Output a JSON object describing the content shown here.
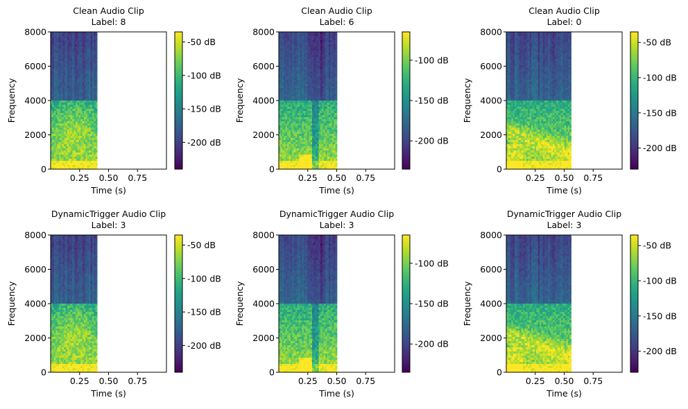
{
  "chart_data": [
    {
      "type": "heatmap",
      "title_line1": "Clean Audio Clip",
      "title_line2": "Label: 8",
      "xlabel": "Time (s)",
      "ylabel": "Frequency",
      "xlim": [
        0.0,
        1.0
      ],
      "ylim": [
        0,
        8000
      ],
      "xticks": [
        0.25,
        0.5,
        0.75
      ],
      "xtick_labels": [
        "0.25",
        "0.50",
        "0.75"
      ],
      "yticks": [
        0,
        2000,
        4000,
        6000,
        8000
      ],
      "ytick_labels": [
        "0",
        "2000",
        "4000",
        "6000",
        "8000"
      ],
      "signal_end_s": 0.4,
      "colormap": "viridis",
      "colorbar_range_db": [
        -240,
        -35
      ],
      "colorbar_ticks": [
        -50,
        -100,
        -150,
        -200
      ],
      "colorbar_tick_labels": [
        "-50 dB",
        "-100 dB",
        "-150 dB",
        "-200 dB"
      ],
      "variant": 0
    },
    {
      "type": "heatmap",
      "title_line1": "Clean Audio Clip",
      "title_line2": "Label: 6",
      "xlabel": "Time (s)",
      "ylabel": "Frequency",
      "xlim": [
        0.0,
        1.0
      ],
      "ylim": [
        0,
        8000
      ],
      "xticks": [
        0.25,
        0.5,
        0.75
      ],
      "xtick_labels": [
        "0.25",
        "0.50",
        "0.75"
      ],
      "yticks": [
        0,
        2000,
        4000,
        6000,
        8000
      ],
      "ytick_labels": [
        "0",
        "2000",
        "4000",
        "6000",
        "8000"
      ],
      "signal_end_s": 0.5,
      "colormap": "viridis",
      "colorbar_range_db": [
        -235,
        -65
      ],
      "colorbar_ticks": [
        -100,
        -150,
        -200
      ],
      "colorbar_tick_labels": [
        "-100 dB",
        "-150 dB",
        "-200 dB"
      ],
      "variant": 1
    },
    {
      "type": "heatmap",
      "title_line1": "Clean Audio Clip",
      "title_line2": "Label: 0",
      "xlabel": "Time (s)",
      "ylabel": "Frequency",
      "xlim": [
        0.0,
        1.0
      ],
      "ylim": [
        0,
        8000
      ],
      "xticks": [
        0.25,
        0.5,
        0.75
      ],
      "xtick_labels": [
        "0.25",
        "0.50",
        "0.75"
      ],
      "yticks": [
        0,
        2000,
        4000,
        6000,
        8000
      ],
      "ytick_labels": [
        "0",
        "2000",
        "4000",
        "6000",
        "8000"
      ],
      "signal_end_s": 0.55,
      "colormap": "viridis",
      "colorbar_range_db": [
        -230,
        -35
      ],
      "colorbar_ticks": [
        -50,
        -100,
        -150,
        -200
      ],
      "colorbar_tick_labels": [
        "-50 dB",
        "-100 dB",
        "-150 dB",
        "-200 dB"
      ],
      "variant": 2
    },
    {
      "type": "heatmap",
      "title_line1": "DynamicTrigger Audio Clip",
      "title_line2": "Label: 3",
      "xlabel": "Time (s)",
      "ylabel": "Frequency",
      "xlim": [
        0.0,
        1.0
      ],
      "ylim": [
        0,
        8000
      ],
      "xticks": [
        0.25,
        0.5,
        0.75
      ],
      "xtick_labels": [
        "0.25",
        "0.50",
        "0.75"
      ],
      "yticks": [
        0,
        2000,
        4000,
        6000,
        8000
      ],
      "ytick_labels": [
        "0",
        "2000",
        "4000",
        "6000",
        "8000"
      ],
      "signal_end_s": 0.4,
      "colormap": "viridis",
      "colorbar_range_db": [
        -240,
        -35
      ],
      "colorbar_ticks": [
        -50,
        -100,
        -150,
        -200
      ],
      "colorbar_tick_labels": [
        "-50 dB",
        "-100 dB",
        "-150 dB",
        "-200 dB"
      ],
      "variant": 0
    },
    {
      "type": "heatmap",
      "title_line1": "DynamicTrigger Audio Clip",
      "title_line2": "Label: 3",
      "xlabel": "Time (s)",
      "ylabel": "Frequency",
      "xlim": [
        0.0,
        1.0
      ],
      "ylim": [
        0,
        8000
      ],
      "xticks": [
        0.25,
        0.5,
        0.75
      ],
      "xtick_labels": [
        "0.25",
        "0.50",
        "0.75"
      ],
      "yticks": [
        0,
        2000,
        4000,
        6000,
        8000
      ],
      "ytick_labels": [
        "0",
        "2000",
        "4000",
        "6000",
        "8000"
      ],
      "signal_end_s": 0.5,
      "colormap": "viridis",
      "colorbar_range_db": [
        -235,
        -65
      ],
      "colorbar_ticks": [
        -100,
        -150,
        -200
      ],
      "colorbar_tick_labels": [
        "-100 dB",
        "-150 dB",
        "-200 dB"
      ],
      "variant": 1
    },
    {
      "type": "heatmap",
      "title_line1": "DynamicTrigger Audio Clip",
      "title_line2": "Label: 3",
      "xlabel": "Time (s)",
      "ylabel": "Frequency",
      "xlim": [
        0.0,
        1.0
      ],
      "ylim": [
        0,
        8000
      ],
      "xticks": [
        0.25,
        0.5,
        0.75
      ],
      "xtick_labels": [
        "0.25",
        "0.50",
        "0.75"
      ],
      "yticks": [
        0,
        2000,
        4000,
        6000,
        8000
      ],
      "ytick_labels": [
        "0",
        "2000",
        "4000",
        "6000",
        "8000"
      ],
      "signal_end_s": 0.55,
      "colormap": "viridis",
      "colorbar_range_db": [
        -230,
        -35
      ],
      "colorbar_ticks": [
        -50,
        -100,
        -150,
        -200
      ],
      "colorbar_tick_labels": [
        "-50 dB",
        "-100 dB",
        "-150 dB",
        "-200 dB"
      ],
      "variant": 2
    }
  ]
}
